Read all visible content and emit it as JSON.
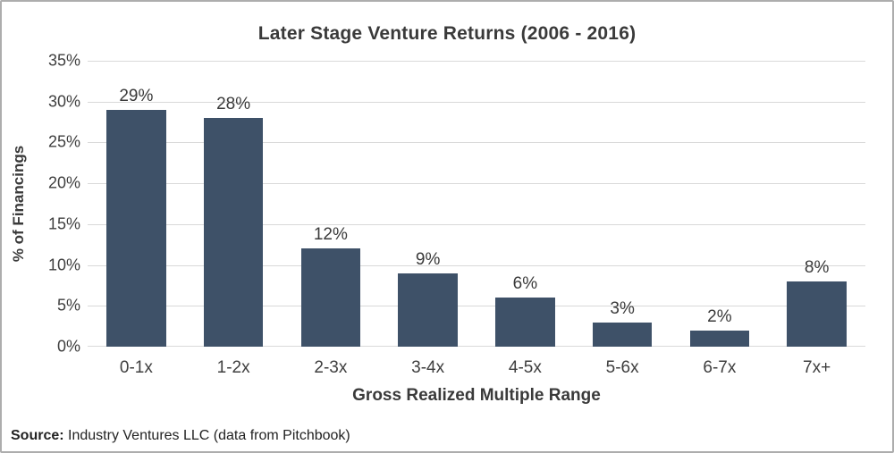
{
  "chart_data": {
    "type": "bar",
    "title": "Later Stage Venture Returns (2006 - 2016)",
    "categories": [
      "0-1x",
      "1-2x",
      "2-3x",
      "3-4x",
      "4-5x",
      "5-6x",
      "6-7x",
      "7x+"
    ],
    "values": [
      29,
      28,
      12,
      9,
      6,
      3,
      2,
      8
    ],
    "value_labels": [
      "29%",
      "28%",
      "12%",
      "9%",
      "6%",
      "3%",
      "2%",
      "8%"
    ],
    "xlabel": "Gross Realized Multiple Range",
    "ylabel": "% of Financings",
    "ylim": [
      0,
      35
    ],
    "ytick_step": 5,
    "ytick_labels": [
      "0%",
      "5%",
      "10%",
      "15%",
      "20%",
      "25%",
      "30%",
      "35%"
    ],
    "grid": true,
    "legend": "none",
    "colors": {
      "bar": "#3e5168",
      "gridline": "#d9d9d9",
      "text": "#3a3a3a",
      "frame_border": "#adadad",
      "background": "#ffffff"
    }
  },
  "source": {
    "label": "Source:",
    "text": " Industry Ventures LLC (data from Pitchbook)"
  }
}
